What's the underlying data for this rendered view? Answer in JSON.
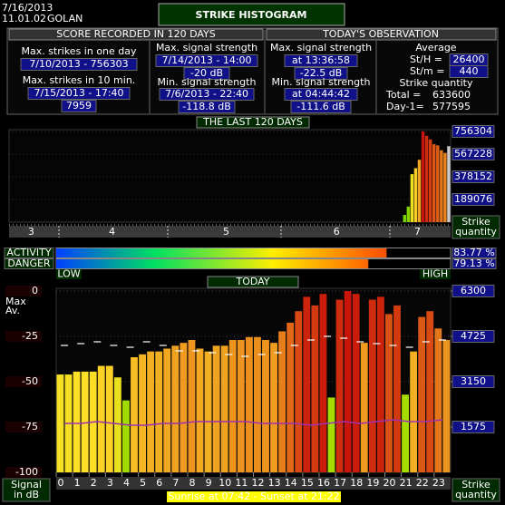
{
  "header": {
    "date": "7/16/2013",
    "time": "11.01.02",
    "station": "GOLAN",
    "title": "STRIKE HISTOGRAM"
  },
  "score": {
    "heading": "SCORE RECORDED IN 120 DAYS",
    "max_day_label": "Max. strikes in one day",
    "max_day_value": "7/10/2013 - 756303",
    "max_10min_label": "Max. strikes in 10 min.",
    "max_10min_date": "7/15/2013 - 17:40",
    "max_10min_value": "7959",
    "max_signal_label": "Max. signal strength",
    "max_signal_date": "7/14/2013 - 14:00",
    "max_signal_value": "-20 dB",
    "min_signal_label": "Min. signal strength",
    "min_signal_date": "7/6/2013 - 22:40",
    "min_signal_value": "-118.8 dB"
  },
  "today_obs": {
    "heading": "TODAY'S OBSERVATION",
    "max_signal_label": "Max. signal strength",
    "max_signal_time": "at 13:36:58",
    "max_signal_value": "-22.5 dB",
    "min_signal_label": "Min. signal strength",
    "min_signal_time": "at 04:44:42",
    "min_signal_value": "-111.6 dB",
    "average_label": "Average",
    "sth_label": "St/H =",
    "sth_value": "26400",
    "stm_label": "St/m =",
    "stm_value": "440",
    "quantity_label": "Strike quantity",
    "total_label": "Total  =",
    "total_value": "633600",
    "day1_label": "Day-1=",
    "day1_value": "577595"
  },
  "chart_data": [
    {
      "type": "bar",
      "title": "THE LAST 120 DAYS",
      "ylabel_lines": [
        "Strike",
        "quantity"
      ],
      "x": [
        108,
        109,
        110,
        111,
        112,
        113,
        114,
        115,
        116,
        117,
        118,
        119,
        120
      ],
      "values": [
        60000,
        130000,
        400000,
        450000,
        520000,
        756303,
        720000,
        690000,
        650000,
        640000,
        600000,
        577595,
        633600
      ],
      "today_color": "#cccccc",
      "xlim": [
        0,
        120
      ],
      "xticks": [
        {
          "value": 6,
          "label": "3"
        },
        {
          "value": 28,
          "label": "4"
        },
        {
          "value": 59,
          "label": "5"
        },
        {
          "value": 89,
          "label": "6"
        },
        {
          "value": 111,
          "label": "7"
        }
      ],
      "ylim": [
        0,
        756304
      ],
      "yticks": [
        189076,
        378152,
        567228,
        756304
      ]
    },
    {
      "type": "gauge",
      "categories": [
        "ACTIVITY",
        "DANGER"
      ],
      "values": [
        83.77,
        79.13
      ],
      "value_labels": [
        "83.77 %",
        "79.13 %"
      ],
      "xlim": [
        0,
        100
      ],
      "low_label": "LOW",
      "high_label": "HIGH"
    },
    {
      "type": "bar",
      "title": "TODAY",
      "ylabel_lines": [
        "Signal",
        "in dB"
      ],
      "y2label_lines": [
        "Strike",
        "quantity"
      ],
      "note": "Sunrise at 07:42 - Sunset at 21:22",
      "xlim": [
        0,
        24
      ],
      "xticks": [
        0,
        1,
        2,
        3,
        4,
        5,
        6,
        7,
        8,
        9,
        10,
        11,
        12,
        13,
        14,
        15,
        16,
        17,
        18,
        19,
        20,
        21,
        22,
        23
      ],
      "ylim": [
        -100,
        0
      ],
      "yticks": [
        -100,
        -75,
        -50,
        -25,
        0
      ],
      "y2lim": [
        0,
        6300
      ],
      "y2ticks": [
        1575,
        3150,
        4725,
        6300
      ],
      "grid": true,
      "bars": {
        "axis": "y2",
        "x": [
          0,
          0.5,
          1,
          1.5,
          2,
          2.5,
          3,
          3.5,
          4,
          4.5,
          5,
          5.5,
          6,
          6.5,
          7,
          7.5,
          8,
          8.5,
          9,
          9.5,
          10,
          10.5,
          11,
          11.5,
          12,
          12.5,
          13,
          13.5,
          14,
          14.5,
          15,
          15.5,
          16,
          16.5,
          17,
          17.5,
          18,
          18.5,
          19,
          19.5,
          20,
          20.5,
          21,
          21.5,
          22,
          22.5,
          23,
          23.5
        ],
        "values": [
          3400,
          3400,
          3500,
          3500,
          3500,
          3700,
          3700,
          3300,
          2500,
          4000,
          4100,
          4200,
          4200,
          4300,
          4400,
          4500,
          4600,
          4300,
          4200,
          4400,
          4400,
          4600,
          4600,
          4700,
          4700,
          4600,
          4500,
          4900,
          5200,
          5600,
          6100,
          5800,
          6200,
          2600,
          6000,
          6300,
          6200,
          4500,
          6000,
          6100,
          5500,
          5800,
          2700,
          4200,
          5400,
          5600,
          5000,
          4600
        ]
      },
      "series": [
        {
          "name": "Max",
          "color": "#ffffff",
          "x": [
            0.5,
            1.5,
            2.5,
            3.5,
            4.5,
            5.5,
            6.5,
            7.5,
            8.5,
            9.5,
            10.5,
            11.5,
            12.5,
            13.5,
            14.5,
            15.5,
            16.5,
            17.5,
            18.5,
            19.5,
            20.5,
            21.5,
            22.5,
            23.5
          ],
          "values": [
            -30,
            -29,
            -28,
            -30,
            -31,
            -28,
            -30,
            -33,
            -33,
            -34,
            -35,
            -36,
            -35,
            -34,
            -30,
            -27,
            -25,
            -26,
            -28,
            -29,
            -30,
            -31,
            -28,
            -27
          ]
        },
        {
          "name": "Av.",
          "color": "#a030b0",
          "x": [
            0.5,
            1.5,
            2.5,
            3.5,
            4.5,
            5.5,
            6.5,
            7.5,
            8.5,
            9.5,
            10.5,
            11.5,
            12.5,
            13.5,
            14.5,
            15.5,
            16.5,
            17.5,
            18.5,
            19.5,
            20.5,
            21.5,
            22.5,
            23.5
          ],
          "values": [
            -73,
            -73,
            -72,
            -73,
            -74,
            -74,
            -73,
            -73,
            -72,
            -72,
            -72,
            -72,
            -73,
            -73,
            -73,
            -74,
            -73,
            -72,
            -73,
            -72,
            -71,
            -72,
            -72,
            -71
          ]
        }
      ]
    }
  ]
}
